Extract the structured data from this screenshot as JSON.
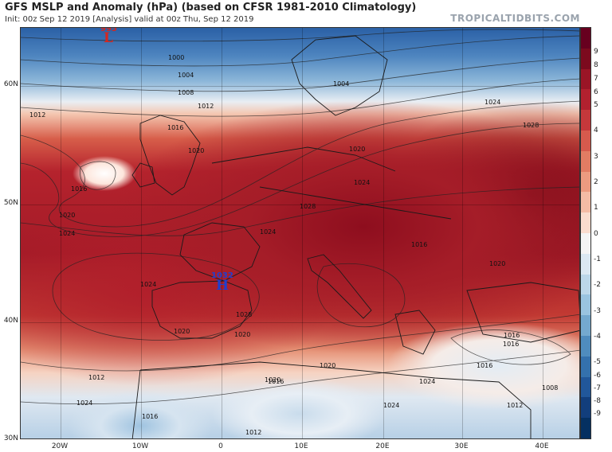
{
  "header": {
    "title": "GFS MSLP and Anomaly (hPa) (based on CFSR 1981-2010 Climatology)",
    "subtitle": "Init: 00z Sep 12 2019   [Analysis]   valid at 00z Thu, Sep 12 2019",
    "brand": "TROPICALTIDBITS.COM"
  },
  "pressure_centers": [
    {
      "type": "L",
      "value": "995",
      "color": "#d7261e"
    },
    {
      "type": "H",
      "value": "1032",
      "color": "#1f3fcf"
    }
  ],
  "isobar_labels": [
    "1000",
    "1004",
    "1008",
    "1012",
    "1016",
    "1020",
    "1024",
    "1004",
    "1012",
    "1016",
    "1020",
    "1024",
    "1028",
    "1020",
    "1024",
    "1028",
    "1024",
    "1028",
    "1016",
    "1020",
    "1024",
    "1016",
    "1020",
    "1020",
    "1012",
    "1016",
    "1024",
    "1016",
    "1012",
    "1008",
    "1020",
    "1016",
    "1024",
    "1020",
    "1024",
    "1012",
    "1016"
  ],
  "lat_labels": [
    "60N",
    "50N",
    "40N",
    "30N"
  ],
  "lon_labels": [
    "20W",
    "10W",
    "0",
    "10E",
    "20E",
    "30E",
    "40E"
  ],
  "colorbar": {
    "labels": [
      "9",
      "8",
      "7",
      "6",
      "5",
      "4",
      "3",
      "2",
      "1",
      "0",
      "-1",
      "-2",
      "-3",
      "-4",
      "-5",
      "-6",
      "-7",
      "-8",
      "-9"
    ],
    "colors": [
      "#67001f",
      "#7c0a1e",
      "#9a1526",
      "#b2212f",
      "#c5383b",
      "#d65a4d",
      "#e27c63",
      "#ec9b80",
      "#f4bca5",
      "#fadcce",
      "#f4f4f4",
      "#dbe8f2",
      "#bcd7e9",
      "#9ac4e0",
      "#74a9cf",
      "#4f8cbe",
      "#3471ad",
      "#21579a",
      "#123e7c",
      "#053061"
    ]
  }
}
